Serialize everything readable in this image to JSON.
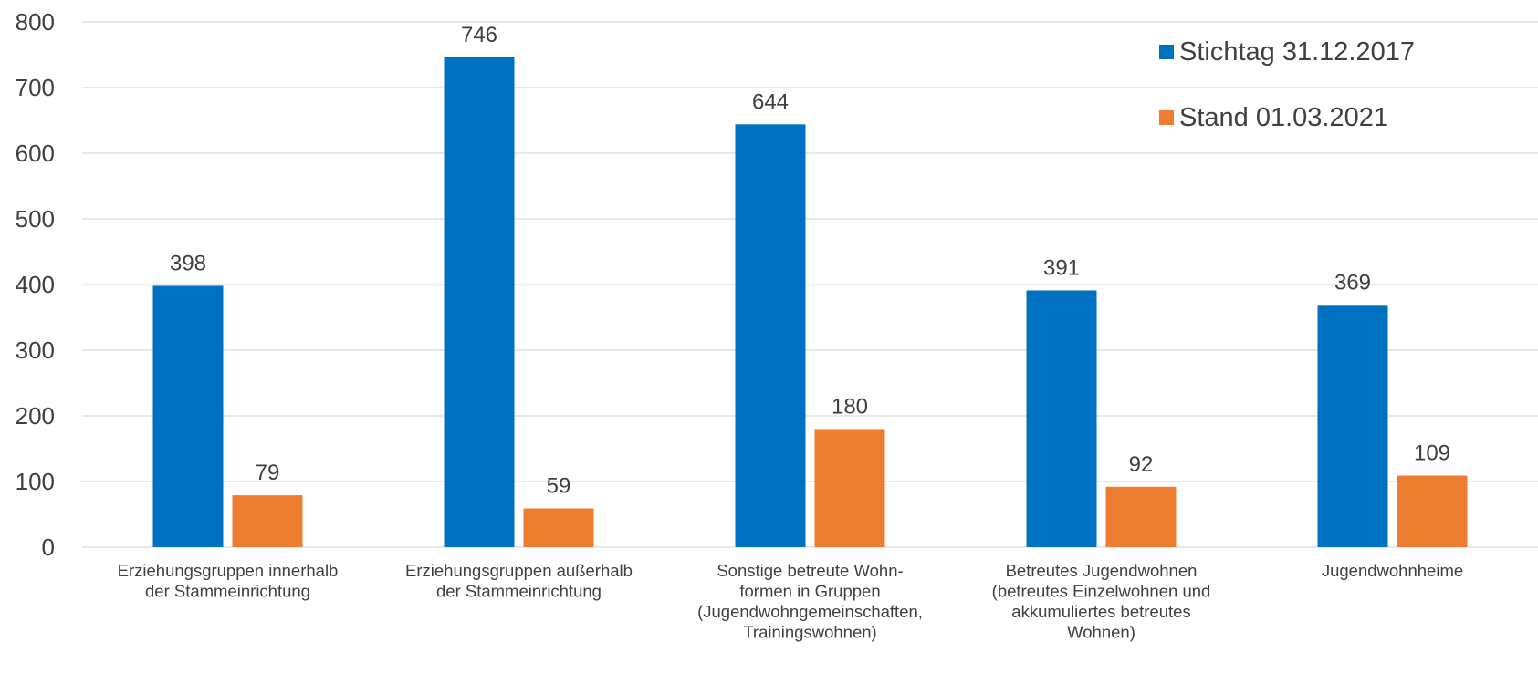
{
  "chart_data": {
    "type": "bar",
    "title": "",
    "xlabel": "",
    "ylabel": "",
    "ylim": [
      0,
      800
    ],
    "yticks": [
      0,
      100,
      200,
      300,
      400,
      500,
      600,
      700,
      800
    ],
    "grid": true,
    "legend_position": "top-right",
    "categories": [
      "Erziehungsgruppen innerhalb der Stammeinrichtung",
      "Erziehungsgruppen außerhalb der Stammeinrichtung",
      "Sonstige betreute Wohnformen in Gruppen (Jugendwohngemeinschaften, Trainingswohnen)",
      "Betreutes Jugendwohnen (betreutes Einzelwohnen und akkumuliertes betreutes Wohnen)",
      "Jugendwohnheime"
    ],
    "category_label_lines": [
      [
        "Erziehungsgruppen innerhalb",
        "der Stammeinrichtung"
      ],
      [
        "Erziehungsgruppen außerhalb",
        "der Stammeinrichtung"
      ],
      [
        "Sonstige betreute Wohn-",
        "formen in Gruppen",
        "(Jugendwohngemeinschaften,",
        "Trainingswohnen)"
      ],
      [
        "Betreutes Jugendwohnen",
        "(betreutes Einzelwohnen und",
        "akkumuliertes betreutes",
        "Wohnen)"
      ],
      [
        "Jugendwohnheime"
      ]
    ],
    "series": [
      {
        "name": "Stichtag 31.12.2017",
        "color": "#0070C0",
        "values": [
          398,
          746,
          644,
          391,
          369
        ]
      },
      {
        "name": "Stand 01.03.2021",
        "color": "#ED7D31",
        "values": [
          79,
          59,
          180,
          92,
          109
        ]
      }
    ]
  }
}
